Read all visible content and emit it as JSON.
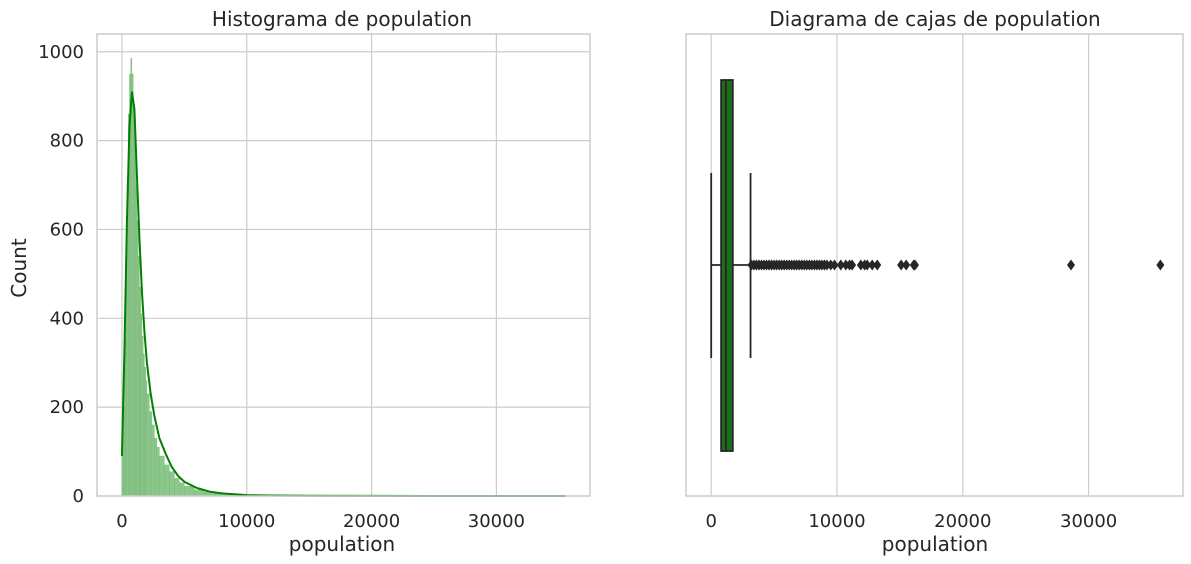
{
  "colors": {
    "hist_fill": "#8cc78c",
    "hist_edge": "#6fae6f",
    "kde_line": "#008000",
    "box_fill": "#1a6e1a",
    "whisker": "#262626",
    "grid": "#cccccc",
    "frame": "#cccccc"
  },
  "chart_data": [
    {
      "type": "histogram",
      "title": "Histograma de population",
      "xlabel": "population",
      "ylabel": "Count",
      "xlim": [
        -2000,
        37500
      ],
      "ylim": [
        0,
        1040
      ],
      "xticks": [
        0,
        10000,
        20000,
        30000
      ],
      "xtick_labels": [
        "0",
        "10000",
        "20000",
        "30000"
      ],
      "yticks": [
        0,
        200,
        400,
        600,
        800,
        1000
      ],
      "ytick_labels": [
        "0",
        "200",
        "400",
        "600",
        "800",
        "1000"
      ],
      "grid": true,
      "bins": {
        "x": [
          0,
          100,
          200,
          300,
          400,
          500,
          600,
          700,
          800,
          900,
          1000,
          1100,
          1200,
          1300,
          1400,
          1500,
          1600,
          1700,
          1800,
          1900,
          2000,
          2200,
          2400,
          2600,
          2800,
          3000,
          3400,
          3800,
          4200,
          4600,
          5000,
          5800,
          6600,
          7400,
          8200,
          9000,
          10500,
          12000,
          14000,
          16000,
          20000,
          25000,
          30000,
          35500
        ],
        "counts": [
          90,
          200,
          350,
          520,
          700,
          860,
          950,
          985,
          950,
          880,
          800,
          700,
          620,
          540,
          470,
          410,
          360,
          320,
          290,
          260,
          230,
          190,
          160,
          130,
          110,
          90,
          70,
          55,
          40,
          30,
          22,
          14,
          9,
          6,
          4,
          3,
          2,
          1,
          1,
          1,
          0,
          0,
          1,
          1
        ]
      },
      "kde": {
        "x": [
          0,
          200,
          400,
          600,
          800,
          1000,
          1200,
          1400,
          1600,
          1800,
          2000,
          2300,
          2600,
          3000,
          3500,
          4000,
          4500,
          5000,
          6000,
          7000,
          8000,
          10000,
          12000,
          15000,
          20000,
          25000,
          30000,
          35500
        ],
        "y": [
          90,
          330,
          620,
          830,
          910,
          870,
          720,
          580,
          460,
          370,
          300,
          230,
          180,
          130,
          95,
          65,
          45,
          32,
          18,
          10,
          6,
          2,
          1,
          0.5,
          0.2,
          0.1,
          0.1,
          0
        ]
      }
    },
    {
      "type": "box",
      "title": "Diagrama de cajas de population",
      "xlabel": "population",
      "xlim": [
        -2000,
        37500
      ],
      "xticks": [
        0,
        10000,
        20000,
        30000
      ],
      "xtick_labels": [
        "0",
        "10000",
        "20000",
        "30000"
      ],
      "grid": true,
      "box": {
        "whisker_low": 3,
        "q1": 790,
        "median": 1170,
        "q3": 1720,
        "whisker_high": 3130
      },
      "outliers": [
        3200,
        3400,
        3600,
        3800,
        4000,
        4200,
        4400,
        4600,
        4800,
        5000,
        5200,
        5400,
        5600,
        5800,
        6000,
        6200,
        6400,
        6600,
        6800,
        7000,
        7200,
        7400,
        7600,
        7800,
        8000,
        8200,
        8400,
        8600,
        8800,
        9000,
        9200,
        9500,
        9800,
        10300,
        10700,
        11000,
        11200,
        11900,
        12200,
        12400,
        12800,
        13200,
        15100,
        15500,
        16100,
        16200,
        28600,
        35700
      ]
    }
  ]
}
